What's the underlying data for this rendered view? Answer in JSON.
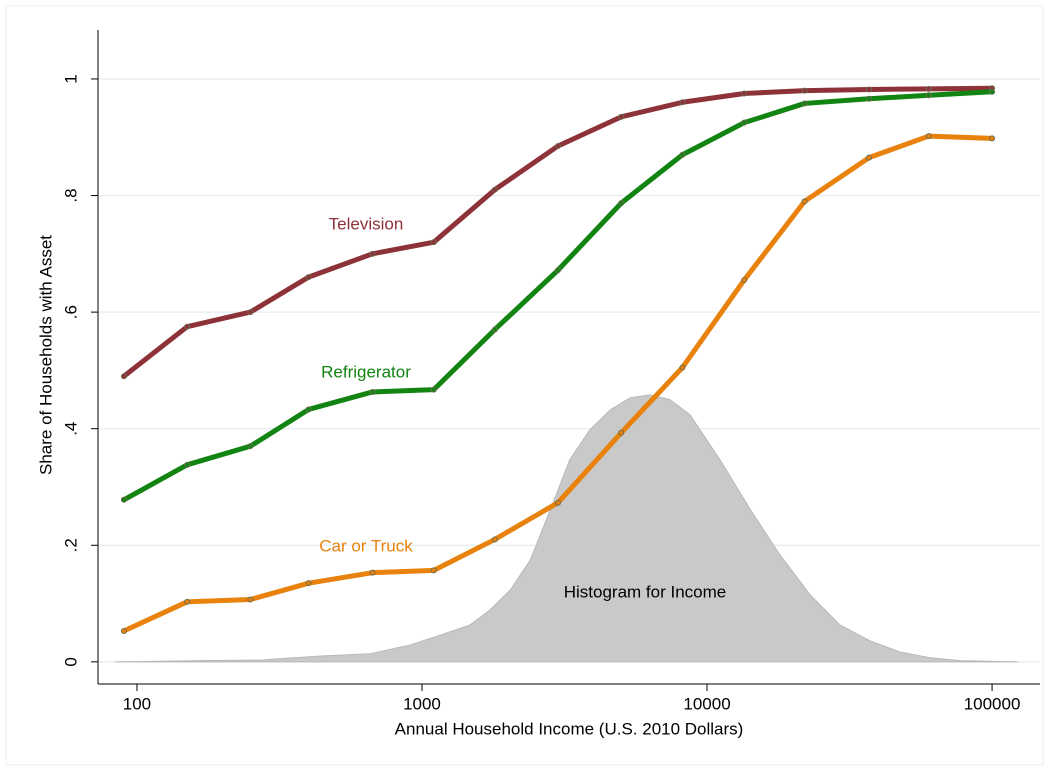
{
  "chart_data": {
    "type": "line",
    "y_label": "Share of Households with Asset",
    "x_label": "Annual Household Income (U.S. 2010 Dollars)",
    "log_x": true,
    "grid": true,
    "xlim": [
      73,
      147300
    ],
    "ylim": [
      -0.038,
      1.084
    ],
    "xticks": [
      100,
      1000,
      10000,
      100000
    ],
    "yticks": [
      0,
      {
        "value": 0.2,
        "label": ".2"
      },
      {
        "value": 0.4,
        "label": ".4"
      },
      {
        "value": 0.6,
        "label": ".6"
      },
      {
        "value": 0.8,
        "label": ".8"
      },
      1
    ],
    "x": [
      90,
      150,
      250,
      400,
      670,
      1100,
      1800,
      3000,
      5000,
      8200,
      13500,
      22000,
      37000,
      60000,
      100000
    ],
    "series": [
      {
        "name": "Television",
        "color": "#8e3239",
        "values": [
          0.49,
          0.575,
          0.6,
          0.66,
          0.7,
          0.72,
          0.81,
          0.885,
          0.935,
          0.96,
          0.975,
          0.98,
          0.982,
          0.983,
          0.984
        ]
      },
      {
        "name": "Refrigerator",
        "color": "#128412",
        "values": [
          0.278,
          0.338,
          0.37,
          0.433,
          0.463,
          0.467,
          0.57,
          0.672,
          0.787,
          0.87,
          0.925,
          0.958,
          0.966,
          0.972,
          0.978
        ]
      },
      {
        "name": "Car or Truck",
        "color": "#e8820c",
        "values": [
          0.053,
          0.103,
          0.107,
          0.135,
          0.153,
          0.157,
          0.21,
          0.273,
          0.393,
          0.505,
          0.655,
          0.79,
          0.865,
          0.902,
          0.898
        ]
      }
    ],
    "histogram": {
      "label": "Histogram for Income",
      "color": "#c9c9c9",
      "x": [
        84,
        166,
        270,
        440,
        660,
        910,
        1160,
        1470,
        1730,
        2040,
        2400,
        2820,
        3300,
        3880,
        4570,
        5370,
        6310,
        7410,
        8710,
        11100,
        14200,
        18000,
        23000,
        29300,
        37300,
        47500,
        60600,
        77300,
        123000
      ],
      "values": [
        0,
        0.002,
        0.003,
        0.01,
        0.014,
        0.029,
        0.046,
        0.063,
        0.089,
        0.123,
        0.175,
        0.261,
        0.347,
        0.398,
        0.432,
        0.453,
        0.458,
        0.45,
        0.424,
        0.347,
        0.261,
        0.184,
        0.115,
        0.063,
        0.036,
        0.017,
        0.007,
        0.002,
        0
      ]
    }
  }
}
